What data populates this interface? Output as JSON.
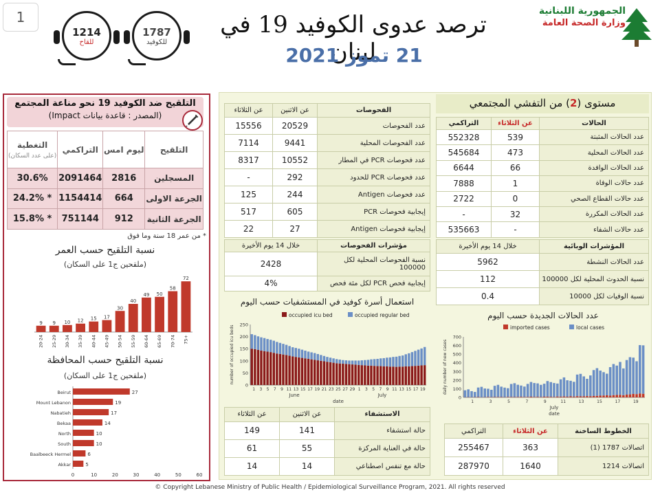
{
  "page_number": "1",
  "header": {
    "title": "ترصد عدوى الكوفيد 19 في لبنان",
    "date": "21 تموز 2021",
    "ministry_line1": "الجمهورية اللبنانية",
    "ministry_line2": "وزارة الصحة العامة",
    "hotline_covid": {
      "number": "1787",
      "label": "للكوفيد"
    },
    "hotline_vaccine": {
      "number": "1214",
      "label": "للقاح"
    }
  },
  "vaccination": {
    "title": "التلقيح ضد الكوفيد 19 نحو مناعة المجتمع",
    "source": "(المصدر : قاعدة بيانات Impact)",
    "columns": [
      "التلقيح",
      "ليوم امس",
      "التراكمي",
      "التغطية"
    ],
    "coverage_note": "(على عدد السكان)",
    "rows": [
      {
        "label": "المسجلين",
        "yesterday": "2816",
        "cumulative": "2091464",
        "coverage": "30.6%"
      },
      {
        "label": "الجرعة الاولى",
        "yesterday": "664",
        "cumulative": "1154414",
        "coverage": "* 24.2%"
      },
      {
        "label": "الجرعة الثانية",
        "yesterday": "912",
        "cumulative": "751144",
        "coverage": "* 15.8%"
      }
    ],
    "footnote": "* من عمر 18 سنة وما فوق"
  },
  "age_chart_title": "نسبة التلقيح حسب العمر",
  "age_chart_subtitle": "(ملقحين ج1 على السكان)",
  "gov_chart_title": "نسبة التلقيح حسب المحافظة",
  "gov_chart_subtitle": "(ملقحين ج1 على السكان)",
  "chart_data": [
    {
      "type": "bar",
      "title": "نسبة التلقيح حسب العمر",
      "categories": [
        "20-24",
        "25-29",
        "30-34",
        "35-39",
        "40-44",
        "45-49",
        "50-54",
        "55-59",
        "60-64",
        "65-69",
        "70-74",
        "75+"
      ],
      "values": [
        9,
        9,
        10,
        12,
        15,
        17,
        30,
        40,
        49,
        50,
        58,
        72
      ],
      "ylim": [
        0,
        80
      ],
      "color": "#c0392b"
    },
    {
      "type": "bar",
      "orientation": "horizontal",
      "title": "نسبة التلقيح حسب المحافظة",
      "categories": [
        "Beirut",
        "Mount Lebanon",
        "Nabatieh",
        "Bekaa",
        "North",
        "South",
        "Baalbeeck Hermel",
        "Akkar"
      ],
      "values": [
        27,
        19,
        17,
        14,
        10,
        10,
        6,
        5
      ],
      "xlim": [
        0,
        60
      ],
      "xticks": [
        0,
        10,
        20,
        30,
        40,
        50,
        60
      ],
      "color": "#c0392b"
    },
    {
      "type": "bar",
      "stacked": true,
      "title": "استعمال أسرة كوفيد في المستشفيات حسب اليوم",
      "ylabel": "number of occupied icu beds",
      "xlabel": "date",
      "month_labels": [
        "June",
        "July"
      ],
      "day_labels": [
        "1",
        "3",
        "5",
        "7",
        "9",
        "11",
        "13",
        "15",
        "17",
        "19",
        "21",
        "23",
        "25",
        "27",
        "29",
        "1",
        "3",
        "5",
        "7",
        "9",
        "11",
        "13",
        "15",
        "17",
        "19"
      ],
      "ylim": [
        0,
        250
      ],
      "yticks": [
        0,
        50,
        100,
        150,
        200,
        250
      ],
      "series": [
        {
          "name": "occupied icu bed",
          "color": "#8b1a1a",
          "values": [
            150,
            148,
            145,
            142,
            140,
            138,
            136,
            133,
            130,
            128,
            126,
            124,
            121,
            118,
            116,
            114,
            112,
            110,
            108,
            106,
            104,
            102,
            100,
            98,
            96,
            94,
            92,
            90,
            89,
            88,
            87,
            86,
            85,
            84,
            83,
            82,
            81,
            80,
            80,
            79,
            78,
            78,
            77,
            77,
            76,
            76,
            75,
            76,
            76,
            77,
            77,
            78,
            79,
            80,
            81,
            82
          ]
        },
        {
          "name": "occupied regular bed",
          "color": "#6b8fc6",
          "values": [
            60,
            58,
            56,
            55,
            54,
            52,
            51,
            50,
            48,
            46,
            44,
            42,
            40,
            38,
            37,
            36,
            34,
            32,
            30,
            29,
            28,
            26,
            24,
            22,
            20,
            19,
            18,
            17,
            16,
            15,
            15,
            15,
            16,
            17,
            18,
            20,
            22,
            24,
            26,
            28,
            30,
            32,
            34,
            36,
            38,
            40,
            42,
            44,
            46,
            50,
            54,
            58,
            62,
            66,
            70,
            75
          ]
        }
      ]
    },
    {
      "type": "bar",
      "stacked": true,
      "title": "عدد الحالات الجديدة حسب اليوم",
      "ylabel": "daily number of new cases",
      "xlabel": "date",
      "month_labels": [
        "July"
      ],
      "day_labels": [
        "1",
        "3",
        "5",
        "7",
        "9",
        "11",
        "13",
        "15",
        "17",
        "19"
      ],
      "ylim": [
        0,
        700
      ],
      "yticks": [
        0,
        100,
        200,
        300,
        400,
        500,
        600,
        700
      ],
      "series": [
        {
          "name": "imported cases",
          "color": "#c0392b",
          "values": [
            2,
            3,
            2,
            3,
            4,
            2,
            3,
            5,
            3,
            4,
            5,
            4,
            3,
            6,
            5,
            4,
            6,
            7,
            5,
            6,
            8,
            6,
            7,
            5,
            8,
            9,
            7,
            6,
            10,
            9,
            11,
            8,
            12,
            10,
            14,
            12,
            13,
            15,
            14,
            16,
            18,
            20,
            22,
            24,
            20,
            26,
            28,
            30,
            25,
            32,
            35,
            40,
            38,
            45,
            42
          ]
        },
        {
          "name": "local cases",
          "color": "#6b8fc6",
          "values": [
            80,
            90,
            70,
            60,
            110,
            120,
            100,
            95,
            85,
            130,
            140,
            120,
            110,
            100,
            150,
            160,
            140,
            130,
            120,
            150,
            170,
            160,
            155,
            140,
            150,
            180,
            170,
            160,
            150,
            200,
            220,
            190,
            180,
            170,
            250,
            260,
            230,
            200,
            240,
            300,
            320,
            290,
            270,
            250,
            330,
            360,
            340,
            380,
            310,
            400,
            430,
            420,
            380,
            560,
            560
          ]
        }
      ]
    }
  ],
  "community": {
    "title_pre": "مستوى (",
    "level": "2",
    "title_post": ") من التفشي المجتمعي"
  },
  "cases": {
    "columns": [
      "الحالات",
      "عن الثلاثاء",
      "التراكمي"
    ],
    "rows": [
      {
        "label": "عدد الحالات المثبتة",
        "day": "539",
        "cum": "552328"
      },
      {
        "label": "عدد الحالات المحلية",
        "day": "473",
        "cum": "545684"
      },
      {
        "label": "عدد الحالات الوافدة",
        "day": "66",
        "cum": "6644"
      },
      {
        "label": "عدد حالات الوفاة",
        "day": "1",
        "cum": "7888"
      },
      {
        "label": "عدد حالات القطاع الصحي",
        "day": "0",
        "cum": "2722"
      },
      {
        "label": "عدد الحالات المكررة",
        "day": "32",
        "cum": "-"
      },
      {
        "label": "عدد حالات الشفاء",
        "day": "-",
        "cum": "535663"
      }
    ],
    "indicators_header": "المؤشرات الوبائية",
    "indicators_period": "خلال 14 يوم الأخيرة",
    "indicators": [
      {
        "label": "عدد الحالات النشطة",
        "value": "5962"
      },
      {
        "label": "نسبة الحدوث المحلية لكل 100000",
        "value": "112"
      },
      {
        "label": "نسبة الوفيات لكل 10000",
        "value": "0.4"
      }
    ]
  },
  "tests": {
    "columns": [
      "الفحوصات",
      "عن الاثنين",
      "عن الثلاثاء"
    ],
    "rows": [
      {
        "label": "عدد الفحوصات",
        "mon": "20529",
        "tue": "15556"
      },
      {
        "label": "عدد الفحوصات المحلية",
        "mon": "9441",
        "tue": "7114"
      },
      {
        "label": "عدد فحوصات PCR في المطار",
        "mon": "10552",
        "tue": "8317"
      },
      {
        "label": "عدد فحوصات PCR للحدود",
        "mon": "292",
        "tue": "-"
      },
      {
        "label": "عدد فحوصات Antigen",
        "mon": "244",
        "tue": "125"
      },
      {
        "label": "إيجابية فحوصات PCR",
        "mon": "605",
        "tue": "517"
      },
      {
        "label": "إيجابية فحوصات Antigen",
        "mon": "27",
        "tue": "22"
      }
    ],
    "indicators_header": "مؤشرات الفحوصات",
    "indicators_period": "خلال 14 يوم الأخيرة",
    "indicators": [
      {
        "label": "نسبة الفحوصات المحلية لكل 100000",
        "value": "2428"
      },
      {
        "label": "إيجابية فحص PCR لكل مئة فحص",
        "value": "4%"
      }
    ]
  },
  "beds_chart_title": "استعمال أسرة كوفيد في المستشفيات حسب اليوم",
  "cases_chart_title": "عدد الحالات الجديدة حسب اليوم",
  "hospital": {
    "columns": [
      "الاستشفاء",
      "عن الاثنين",
      "عن الثلاثاء"
    ],
    "rows": [
      {
        "label": "حالة استشفاء",
        "mon": "141",
        "tue": "149"
      },
      {
        "label": "حالة في العناية المركزة",
        "mon": "55",
        "tue": "61"
      },
      {
        "label": "حالة مع تنفس اصطناعي",
        "mon": "14",
        "tue": "14"
      }
    ]
  },
  "hotlines": {
    "columns": [
      "الخطوط الساخنة",
      "عن الثلاثاء",
      "التراكمي"
    ],
    "rows": [
      {
        "label": "اتصالات 1787 (1)",
        "day": "363",
        "cum": "255467"
      },
      {
        "label": "اتصالات 1214",
        "day": "1640",
        "cum": "287970"
      }
    ]
  },
  "footer": "© Copyright Lebanese Ministry of Public Health / Epidemiological Surveillance Program, 2021. All rights reserved"
}
